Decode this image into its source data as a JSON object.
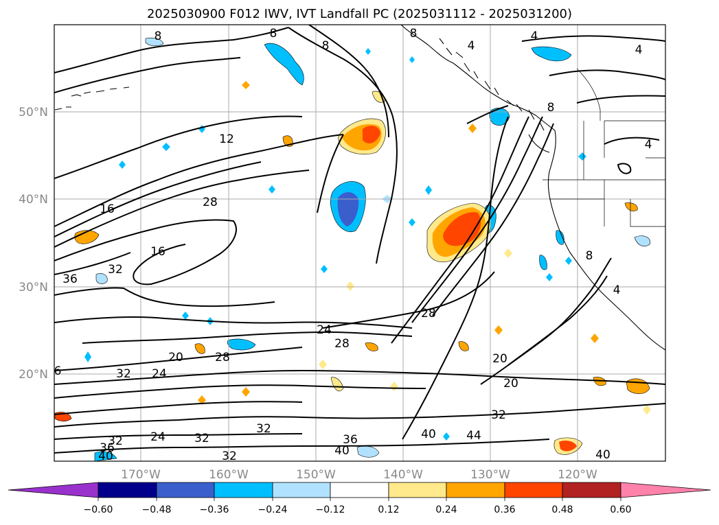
{
  "title": "2025030900 F012 IWV, IVT Landfall PC (2025031112 - 2025031200)",
  "axes": {
    "lat_labels": [
      "50°N",
      "40°N",
      "30°N",
      "20°N"
    ],
    "lon_labels": [
      "170°W",
      "160°W",
      "150°W",
      "140°W",
      "130°W",
      "120°W"
    ]
  },
  "colorbar": {
    "colors": [
      "#9932CC",
      "#00008B",
      "#3A5FCD",
      "#00BFFF",
      "#B0E2FF",
      "#FFFFFF",
      "#FFE98B",
      "#FFA500",
      "#FF4500",
      "#B22222",
      "#FF82AB"
    ],
    "tick_labels": [
      "−0.60",
      "−0.48",
      "−0.36",
      "−0.24",
      "−0.12",
      "0.12",
      "0.24",
      "0.36",
      "0.48",
      "0.60"
    ]
  },
  "contour_labels": [
    {
      "text": "8"
    },
    {
      "text": "8"
    },
    {
      "text": "8"
    },
    {
      "text": "4"
    },
    {
      "text": "4"
    },
    {
      "text": "4"
    },
    {
      "text": "8"
    },
    {
      "text": "8"
    },
    {
      "text": "4"
    },
    {
      "text": "12"
    },
    {
      "text": "28"
    },
    {
      "text": "16"
    },
    {
      "text": "16"
    },
    {
      "text": "32"
    },
    {
      "text": "36"
    },
    {
      "text": "24"
    },
    {
      "text": "28"
    },
    {
      "text": "28"
    },
    {
      "text": "20"
    },
    {
      "text": "28"
    },
    {
      "text": "24"
    },
    {
      "text": "32"
    },
    {
      "text": "20"
    },
    {
      "text": "20"
    },
    {
      "text": "32"
    },
    {
      "text": "32"
    },
    {
      "text": "32"
    },
    {
      "text": "36"
    },
    {
      "text": "40"
    },
    {
      "text": "40"
    },
    {
      "text": "44"
    },
    {
      "text": "40"
    },
    {
      "text": "24"
    },
    {
      "text": "32"
    },
    {
      "text": "32"
    },
    {
      "text": "36"
    },
    {
      "text": "40"
    },
    {
      "text": "6"
    },
    {
      "text": "4"
    },
    {
      "text": "8"
    }
  ]
}
